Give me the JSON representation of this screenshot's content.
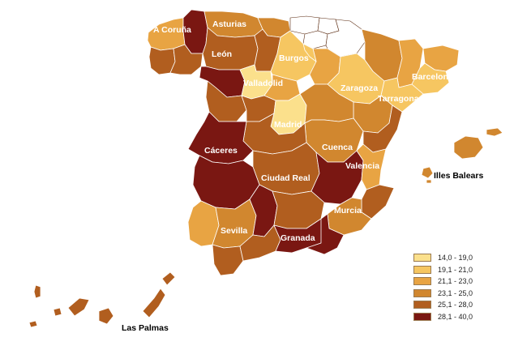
{
  "map": {
    "labels": {
      "a_coruna": "A Coruña",
      "asturias": "Asturias",
      "leon": "León",
      "burgos": "Burgos",
      "valladolid": "Valladolid",
      "zaragoza": "Zaragoza",
      "barcelona": "Barcelona",
      "tarragona": "Tarragona",
      "madrid": "Madrid",
      "caceres": "Cáceres",
      "cuenca": "Cuenca",
      "valencia": "Valencia",
      "ciudad_real": "Ciudad Real",
      "illes_balears": "Illes Balears",
      "murcia": "Murcia",
      "sevilla": "Sevilla",
      "granada": "Granada",
      "las_palmas": "Las Palmas"
    },
    "colors": {
      "c1": "#fbe08c",
      "c2": "#f6c661",
      "c3": "#e8a443",
      "c4": "#d1872f",
      "c5": "#b15e1f",
      "c6": "#7a1712",
      "nodata": "#ffffff"
    }
  },
  "legend": {
    "items": [
      {
        "label": "14,0 - 19,0",
        "color": "#fbe08c"
      },
      {
        "label": "19,1 - 21,0",
        "color": "#f6c661"
      },
      {
        "label": "21,1 - 23,0",
        "color": "#e8a443"
      },
      {
        "label": "23,1 - 25,0",
        "color": "#d1872f"
      },
      {
        "label": "25,1 - 28,0",
        "color": "#b15e1f"
      },
      {
        "label": "28,1 - 40,0",
        "color": "#7a1712"
      }
    ]
  }
}
